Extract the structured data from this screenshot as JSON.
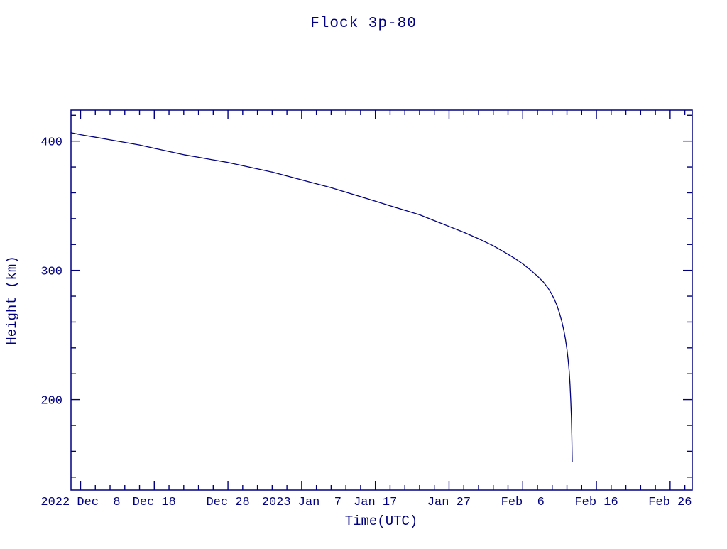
{
  "page": {
    "background": "#ffffff",
    "accent": "#000080"
  },
  "chart_data": {
    "type": "line",
    "title": "Flock 3p-80",
    "xlabel": "Time(UTC)",
    "ylabel": "Height (km)",
    "x_units": "days since 2022 Dec 1 00:00 UTC",
    "xlim": [
      5.7,
      90
    ],
    "ylim": [
      130,
      424
    ],
    "grid": false,
    "legend": "none",
    "x_major_ticks": [
      {
        "x": 7,
        "label": "2022 Dec  8"
      },
      {
        "x": 17,
        "label": "Dec 18"
      },
      {
        "x": 27,
        "label": "Dec 28"
      },
      {
        "x": 37,
        "label": "2023 Jan  7"
      },
      {
        "x": 47,
        "label": "Jan 17"
      },
      {
        "x": 57,
        "label": "Jan 27"
      },
      {
        "x": 67,
        "label": "Feb  6"
      },
      {
        "x": 77,
        "label": "Feb 16"
      },
      {
        "x": 87,
        "label": "Feb 26"
      }
    ],
    "x_minor_step": 2,
    "y_major_ticks": [
      {
        "y": 200,
        "label": "200"
      },
      {
        "y": 300,
        "label": "300"
      },
      {
        "y": 400,
        "label": "400"
      }
    ],
    "y_minor_step": 20,
    "line_color": "#000080",
    "series": [
      {
        "name": "Flock 3p-80 height",
        "points": [
          [
            5.7,
            406.5
          ],
          [
            7,
            405
          ],
          [
            9,
            403
          ],
          [
            11,
            401
          ],
          [
            13,
            399
          ],
          [
            15,
            397
          ],
          [
            17,
            394.5
          ],
          [
            19,
            392
          ],
          [
            21,
            389.5
          ],
          [
            23,
            387.5
          ],
          [
            25,
            385.5
          ],
          [
            27,
            383.5
          ],
          [
            29,
            381
          ],
          [
            31,
            378.5
          ],
          [
            33,
            376
          ],
          [
            35,
            373
          ],
          [
            37,
            370
          ],
          [
            39,
            367
          ],
          [
            41,
            364
          ],
          [
            43,
            360.5
          ],
          [
            45,
            357
          ],
          [
            47,
            353.5
          ],
          [
            49,
            350
          ],
          [
            51,
            346.5
          ],
          [
            53,
            343
          ],
          [
            55,
            338.5
          ],
          [
            57,
            334
          ],
          [
            59,
            329.5
          ],
          [
            61,
            324.5
          ],
          [
            63,
            319
          ],
          [
            65,
            312.5
          ],
          [
            66,
            309
          ],
          [
            67,
            305
          ],
          [
            68,
            300.5
          ],
          [
            69,
            295.5
          ],
          [
            69.8,
            291
          ],
          [
            70.4,
            286.5
          ],
          [
            70.9,
            282
          ],
          [
            71.3,
            277.5
          ],
          [
            71.7,
            272
          ],
          [
            72,
            266.5
          ],
          [
            72.3,
            260.5
          ],
          [
            72.6,
            253
          ],
          [
            72.8,
            246.5
          ],
          [
            73,
            239
          ],
          [
            73.15,
            231.5
          ],
          [
            73.3,
            222
          ],
          [
            73.42,
            211.5
          ],
          [
            73.52,
            199.5
          ],
          [
            73.6,
            186.5
          ],
          [
            73.66,
            172.5
          ],
          [
            73.7,
            159
          ],
          [
            73.72,
            152
          ]
        ]
      }
    ]
  }
}
